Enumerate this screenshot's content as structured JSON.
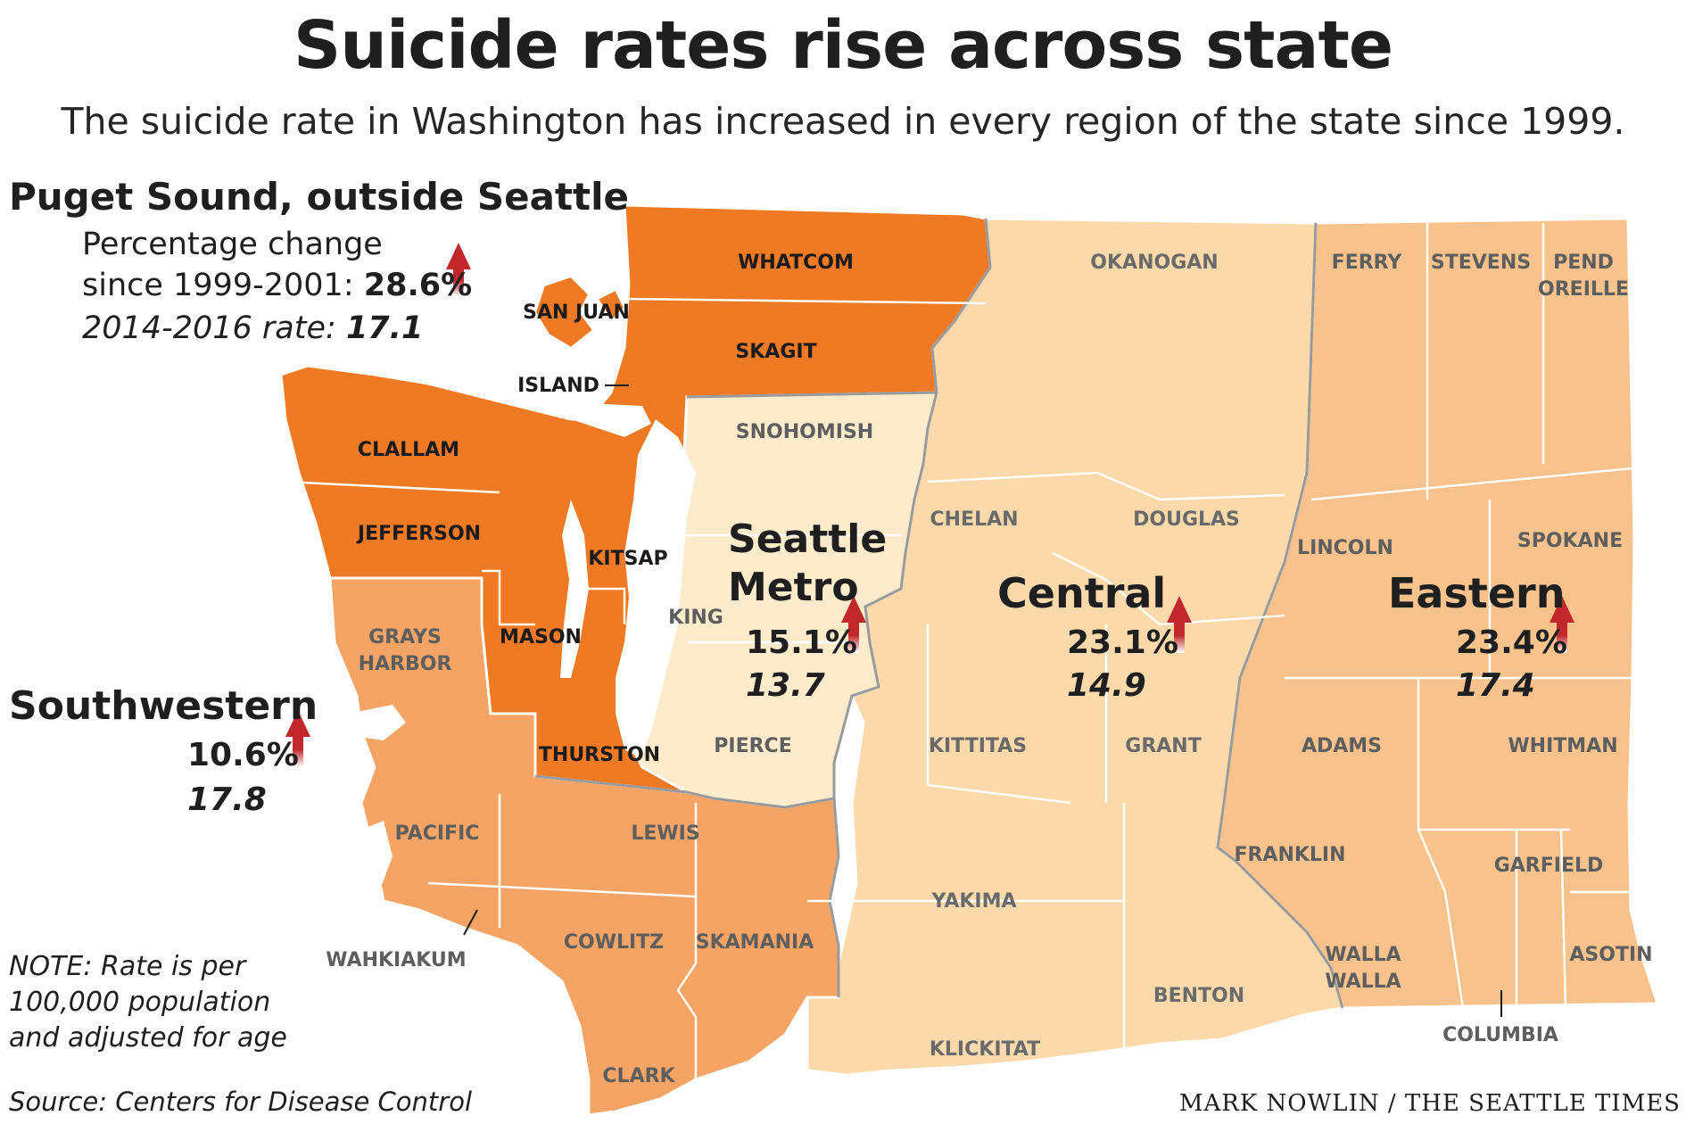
{
  "header": {
    "title": "Suicide rates rise across state",
    "subtitle": "The suicide rate in Washington has increased in every region of the state since 1999."
  },
  "legend": {
    "region_name": "Puget Sound, outside Seattle",
    "change_label_line1": "Percentage change",
    "change_label_line2": "since 1999-2001:",
    "change_value": "28.6%",
    "rate_label": "2014-2016 rate:",
    "rate_value": "17.1"
  },
  "regions": {
    "seattle": {
      "name_line1": "Seattle",
      "name_line2": "Metro",
      "change": "15.1%",
      "rate": "13.7"
    },
    "central": {
      "name": "Central",
      "change": "23.1%",
      "rate": "14.9"
    },
    "eastern": {
      "name": "Eastern",
      "change": "23.4%",
      "rate": "17.4"
    },
    "southwestern": {
      "name": "Southwestern",
      "change": "10.6%",
      "rate": "17.8"
    }
  },
  "counties": {
    "whatcom": "WHATCOM",
    "skagit": "SKAGIT",
    "san_juan": "SAN JUAN",
    "island": "ISLAND",
    "clallam": "CLALLAM",
    "jefferson": "JEFFERSON",
    "kitsap": "KITSAP",
    "mason": "MASON",
    "thurston": "THURSTON",
    "snohomish": "SNOHOMISH",
    "king": "KING",
    "pierce": "PIERCE",
    "grays_harbor_1": "GRAYS",
    "grays_harbor_2": "HARBOR",
    "pacific": "PACIFIC",
    "lewis": "LEWIS",
    "wahkiakum": "WAHKIAKUM",
    "cowlitz": "COWLITZ",
    "skamania": "SKAMANIA",
    "clark": "CLARK",
    "okanogan": "OKANOGAN",
    "chelan": "CHELAN",
    "douglas": "DOUGLAS",
    "kittitas": "KITTITAS",
    "grant": "GRANT",
    "yakima": "YAKIMA",
    "benton": "BENTON",
    "klickitat": "KLICKITAT",
    "ferry": "FERRY",
    "stevens": "STEVENS",
    "pend_oreille_1": "PEND",
    "pend_oreille_2": "OREILLE",
    "lincoln": "LINCOLN",
    "spokane": "SPOKANE",
    "adams": "ADAMS",
    "whitman": "WHITMAN",
    "franklin": "FRANKLIN",
    "garfield": "GARFIELD",
    "asotin": "ASOTIN",
    "walla_walla_1": "WALLA",
    "walla_walla_2": "WALLA",
    "columbia": "COLUMBIA"
  },
  "note": {
    "line1": "NOTE: Rate is per",
    "line2": "100,000 population",
    "line3": "and adjusted for age"
  },
  "source": "Source: Centers for Disease Control",
  "credit": "MARK NOWLIN / THE SEATTLE TIMES",
  "colors": {
    "puget_sound": "#f07a24",
    "southwestern": "#f5a466",
    "seattle_metro": "#fdebcb",
    "central": "#fbd9aa",
    "eastern": "#f8c28c",
    "arrow": "#c0282c"
  }
}
